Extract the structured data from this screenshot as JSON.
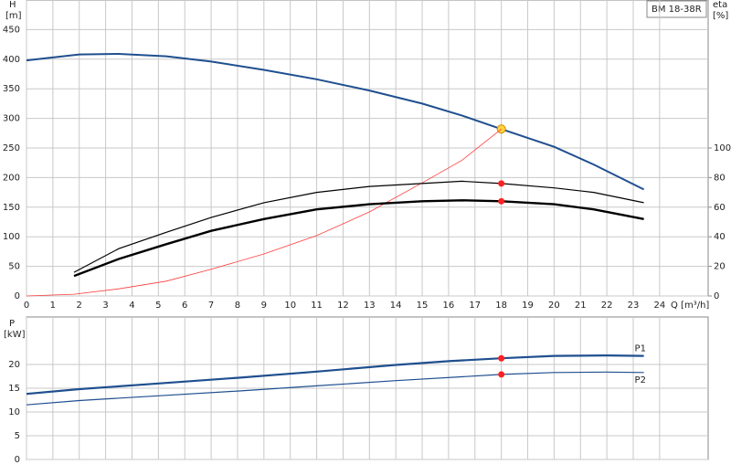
{
  "chart_data": [
    {
      "type": "line",
      "title": "BM 18-38R",
      "xlabel": "Q [m³/h]",
      "ylabel": "H",
      "yunit": "[m]",
      "y2label": "eta",
      "y2unit": "[%]",
      "xlim": [
        0,
        25.84
      ],
      "xticks": [
        0,
        1,
        2,
        3,
        4,
        5,
        6,
        7,
        8,
        9,
        10,
        11,
        12,
        13,
        14,
        15,
        16,
        17,
        18,
        19,
        20,
        21,
        22,
        23,
        24
      ],
      "ylim": [
        0,
        500
      ],
      "yticks": [
        0,
        50,
        100,
        150,
        200,
        250,
        300,
        350,
        400,
        450
      ],
      "y2lim": [
        0,
        200
      ],
      "y2ticks": [
        0,
        20,
        40,
        60,
        80,
        100
      ],
      "grid": true,
      "series": [
        {
          "color": "#1f4f8f",
          "x": [
            0,
            2,
            3.5,
            5.3,
            7,
            9,
            11,
            13,
            15,
            16.5,
            18,
            20,
            21.5,
            23.4
          ],
          "values": [
            398,
            408,
            409,
            405,
            396,
            382,
            366,
            347,
            325,
            305,
            282,
            252,
            222,
            180
          ],
          "marker": {
            "x": 18,
            "y": 282,
            "color": "#ffd23f"
          }
        },
        {
          "color": "#ff3b3b",
          "x": [
            0,
            1.8,
            3.5,
            5.3,
            7,
            9,
            11,
            13,
            15,
            16.5,
            18
          ],
          "values": [
            0,
            3,
            12,
            25,
            45,
            71,
            102,
            142,
            191,
            229,
            282
          ]
        },
        {
          "color": "#000000",
          "axis": "y2",
          "x": [
            1.8,
            3.5,
            5.3,
            7,
            9,
            11,
            13,
            15,
            16.5,
            18,
            20,
            21.5,
            23.4
          ],
          "values": [
            16,
            32,
            43,
            53,
            63,
            70,
            74,
            76,
            77.5,
            76,
            73,
            70,
            63
          ],
          "marker": {
            "x": 18,
            "y": 76,
            "color": "#ff2020"
          }
        },
        {
          "color": "#000000",
          "axis": "y2",
          "x": [
            1.8,
            3.5,
            5.3,
            7,
            9,
            11,
            13,
            15,
            16.5,
            18,
            20,
            21.5,
            23.4
          ],
          "values": [
            13.5,
            25,
            35,
            44,
            52,
            58.5,
            62,
            64,
            64.6,
            64,
            62,
            58.5,
            52
          ],
          "marker": {
            "x": 18,
            "y": 64,
            "color": "#ff2020"
          }
        }
      ]
    },
    {
      "type": "line",
      "ylabel": "P",
      "yunit": "[kW]",
      "xlim": [
        0,
        25.84
      ],
      "ylim": [
        0,
        30
      ],
      "yticks": [
        0,
        5,
        10,
        15,
        20
      ],
      "grid": true,
      "series": [
        {
          "name": "P1",
          "color": "#1f4f8f",
          "x": [
            0,
            2,
            5,
            8,
            11,
            14,
            16,
            18,
            20,
            22,
            23.4
          ],
          "values": [
            13.8,
            14.8,
            16,
            17.2,
            18.5,
            19.9,
            20.7,
            21.3,
            21.8,
            21.9,
            21.8
          ],
          "marker": {
            "x": 18,
            "y": 21.3,
            "color": "#ff2020"
          }
        },
        {
          "name": "P2",
          "color": "#1f4f8f",
          "x": [
            0,
            2,
            5,
            8,
            11,
            14,
            18,
            20,
            22,
            23.4
          ],
          "values": [
            11.5,
            12.4,
            13.4,
            14.4,
            15.5,
            16.6,
            17.9,
            18.3,
            18.4,
            18.3
          ],
          "marker": {
            "x": 18,
            "y": 17.9,
            "color": "#ff2020"
          }
        }
      ]
    }
  ]
}
